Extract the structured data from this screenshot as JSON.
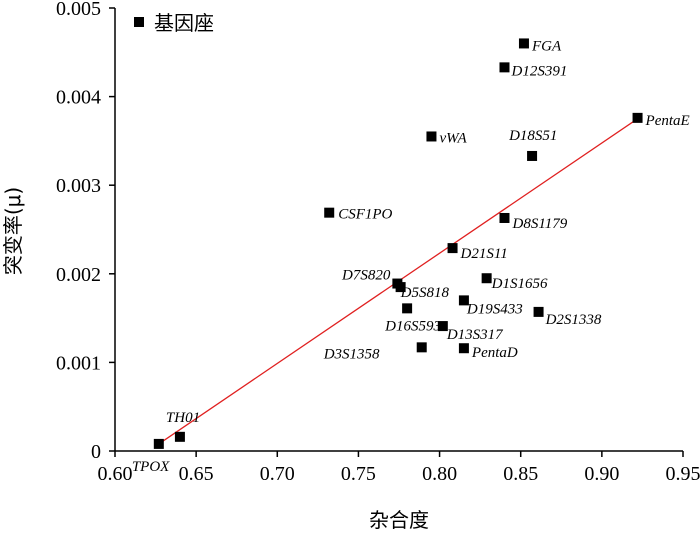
{
  "chart_data": {
    "type": "scatter",
    "xlabel": "杂合度",
    "ylabel": "突变率(μ)",
    "xlim": [
      0.6,
      0.95
    ],
    "ylim": [
      0,
      0.005
    ],
    "xticks": [
      "0.60",
      "0.65",
      "0.70",
      "0.75",
      "0.80",
      "0.85",
      "0.90",
      "0.95"
    ],
    "yticks": [
      "0",
      "0.001",
      "0.002",
      "0.003",
      "0.004",
      "0.005"
    ],
    "grid": false,
    "legend": {
      "position": "top-left",
      "label": "基因座"
    },
    "marker_color": "#000000",
    "trendline_color": "#e02020",
    "trendline": {
      "x": [
        0.627,
        0.922
      ],
      "y": [
        8e-05,
        0.00375
      ]
    },
    "points": [
      {
        "label": "TPOX",
        "x": 0.627,
        "y": 8e-05
      },
      {
        "label": "TH01",
        "x": 0.64,
        "y": 0.00016
      },
      {
        "label": "CSF1PO",
        "x": 0.732,
        "y": 0.00269
      },
      {
        "label": "D7S820",
        "x": 0.774,
        "y": 0.00189
      },
      {
        "label": "D5S818",
        "x": 0.776,
        "y": 0.00185
      },
      {
        "label": "D16S593",
        "x": 0.78,
        "y": 0.00161
      },
      {
        "label": "D3S1358",
        "x": 0.789,
        "y": 0.00117
      },
      {
        "label": "vWA",
        "x": 0.795,
        "y": 0.00355
      },
      {
        "label": "D13S317",
        "x": 0.802,
        "y": 0.00141
      },
      {
        "label": "D21S11",
        "x": 0.808,
        "y": 0.00229
      },
      {
        "label": "D19S433",
        "x": 0.815,
        "y": 0.0017
      },
      {
        "label": "PentaD",
        "x": 0.815,
        "y": 0.00116
      },
      {
        "label": "D1S1656",
        "x": 0.829,
        "y": 0.00195
      },
      {
        "label": "D12S391",
        "x": 0.84,
        "y": 0.00433
      },
      {
        "label": "D8S1179",
        "x": 0.84,
        "y": 0.00263
      },
      {
        "label": "FGA",
        "x": 0.852,
        "y": 0.0046
      },
      {
        "label": "D18S51",
        "x": 0.857,
        "y": 0.00333
      },
      {
        "label": "D2S1338",
        "x": 0.861,
        "y": 0.00157
      },
      {
        "label": "PentaE",
        "x": 0.922,
        "y": 0.00376
      }
    ]
  }
}
